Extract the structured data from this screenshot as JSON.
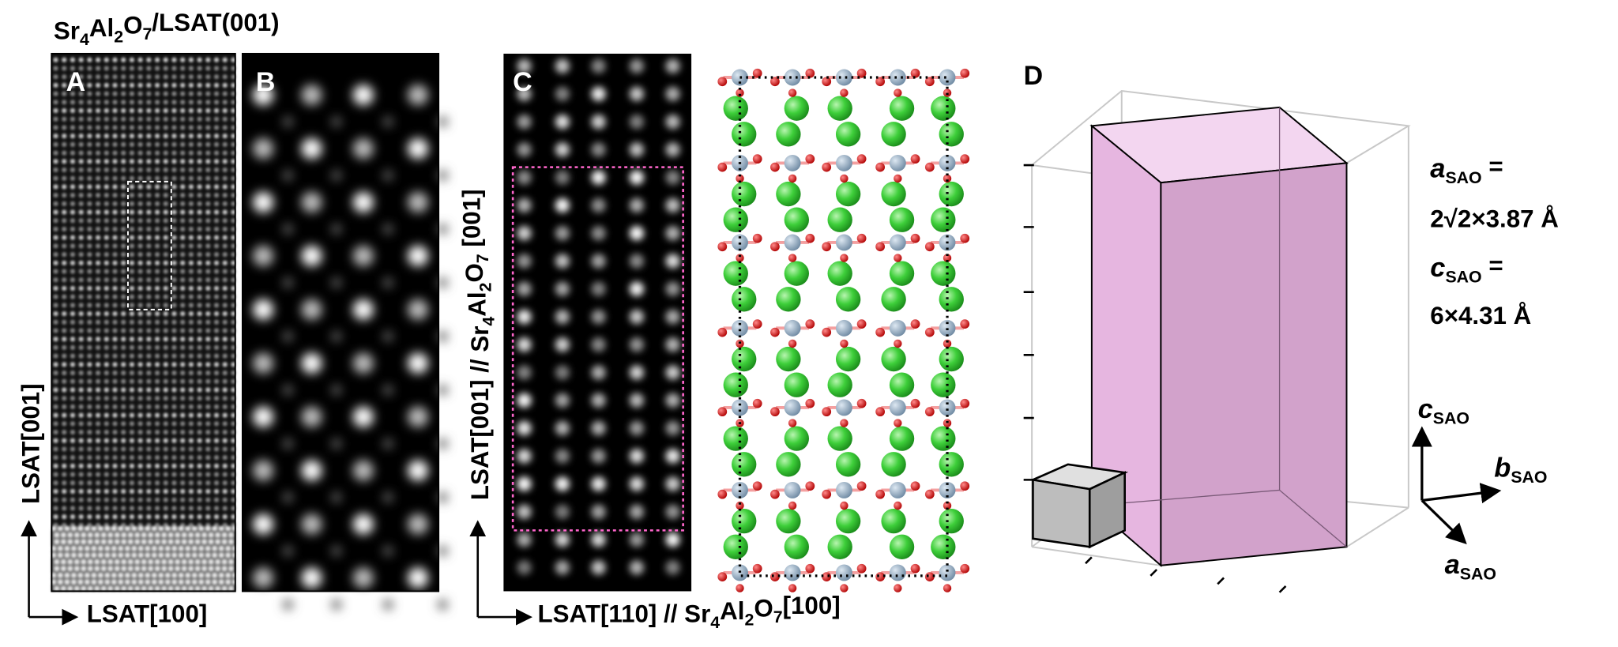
{
  "title": [
    "Sr",
    "4",
    "Al",
    "2",
    "O",
    "7",
    "/LSAT(001)"
  ],
  "panels": {
    "a": "A",
    "b": "B",
    "c": "C",
    "d": "D"
  },
  "axes": {
    "a_vertical": [
      "LSAT[001]"
    ],
    "a_horizontal": [
      "LSAT[100]"
    ],
    "c_vertical": [
      "LSAT[001] // Sr",
      "4",
      "Al",
      "2",
      "O",
      "7",
      " [001]"
    ],
    "c_horizontal": [
      "LSAT[110] // Sr",
      "4",
      "Al",
      "2",
      "O",
      "7",
      "[100]"
    ]
  },
  "lattice": {
    "a_label": [
      "a",
      "SAO",
      " ="
    ],
    "a_value": "2√2×3.87 Å",
    "c_label": [
      "c",
      "SAO",
      " ="
    ],
    "c_value": "6×4.31 Å"
  },
  "frame_axes": {
    "c": [
      "c",
      "SAO"
    ],
    "b": [
      "b",
      "SAO"
    ],
    "a": [
      "a",
      "SAO"
    ]
  }
}
